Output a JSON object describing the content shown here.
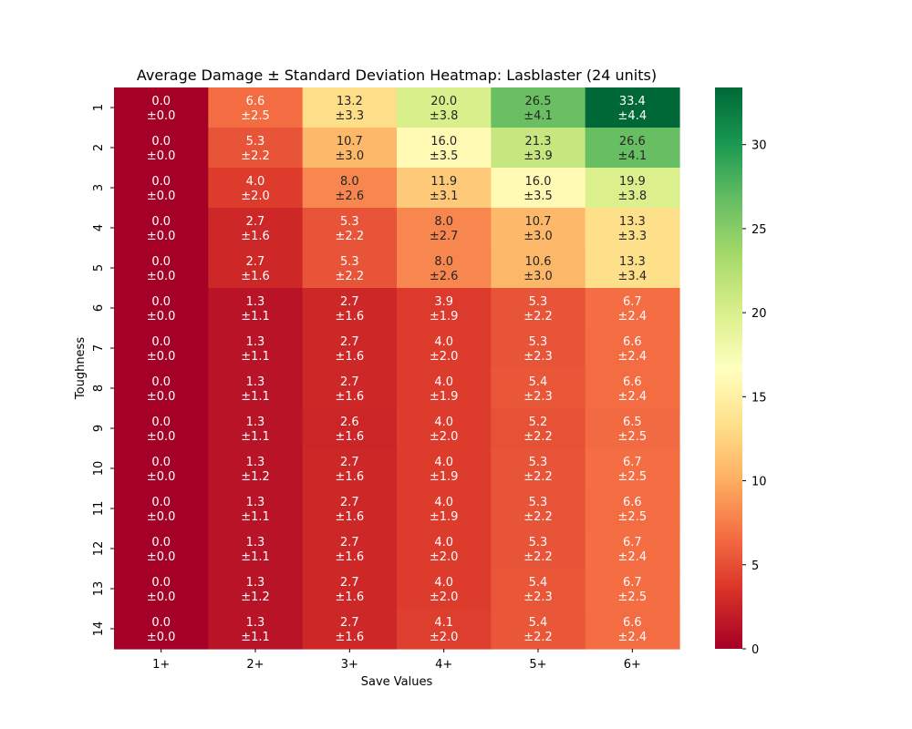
{
  "chart_data": {
    "type": "heatmap",
    "title": "Average Damage ± Standard Deviation Heatmap: Lasblaster (24 units)",
    "xlabel": "Save Values",
    "ylabel": "Toughness",
    "x_categories": [
      "1+",
      "2+",
      "3+",
      "4+",
      "5+",
      "6+"
    ],
    "y_categories": [
      "1",
      "2",
      "3",
      "4",
      "5",
      "6",
      "7",
      "8",
      "9",
      "10",
      "11",
      "12",
      "13",
      "14"
    ],
    "values": [
      [
        0.0,
        6.6,
        13.2,
        20.0,
        26.5,
        33.4
      ],
      [
        0.0,
        5.3,
        10.7,
        16.0,
        21.3,
        26.6
      ],
      [
        0.0,
        4.0,
        8.0,
        11.9,
        16.0,
        19.9
      ],
      [
        0.0,
        2.7,
        5.3,
        8.0,
        10.7,
        13.3
      ],
      [
        0.0,
        2.7,
        5.3,
        8.0,
        10.6,
        13.3
      ],
      [
        0.0,
        1.3,
        2.7,
        3.9,
        5.3,
        6.7
      ],
      [
        0.0,
        1.3,
        2.7,
        4.0,
        5.3,
        6.6
      ],
      [
        0.0,
        1.3,
        2.7,
        4.0,
        5.4,
        6.6
      ],
      [
        0.0,
        1.3,
        2.6,
        4.0,
        5.2,
        6.5
      ],
      [
        0.0,
        1.3,
        2.7,
        4.0,
        5.3,
        6.7
      ],
      [
        0.0,
        1.3,
        2.7,
        4.0,
        5.3,
        6.6
      ],
      [
        0.0,
        1.3,
        2.7,
        4.0,
        5.3,
        6.7
      ],
      [
        0.0,
        1.3,
        2.7,
        4.0,
        5.4,
        6.7
      ],
      [
        0.0,
        1.3,
        2.7,
        4.1,
        5.4,
        6.6
      ]
    ],
    "std": [
      [
        0.0,
        2.5,
        3.3,
        3.8,
        4.1,
        4.4
      ],
      [
        0.0,
        2.2,
        3.0,
        3.5,
        3.9,
        4.1
      ],
      [
        0.0,
        2.0,
        2.6,
        3.1,
        3.5,
        3.8
      ],
      [
        0.0,
        1.6,
        2.2,
        2.7,
        3.0,
        3.3
      ],
      [
        0.0,
        1.6,
        2.2,
        2.6,
        3.0,
        3.4
      ],
      [
        0.0,
        1.1,
        1.6,
        1.9,
        2.2,
        2.4
      ],
      [
        0.0,
        1.1,
        1.6,
        2.0,
        2.3,
        2.4
      ],
      [
        0.0,
        1.1,
        1.6,
        1.9,
        2.3,
        2.4
      ],
      [
        0.0,
        1.1,
        1.6,
        2.0,
        2.2,
        2.5
      ],
      [
        0.0,
        1.2,
        1.6,
        1.9,
        2.2,
        2.5
      ],
      [
        0.0,
        1.1,
        1.6,
        1.9,
        2.2,
        2.5
      ],
      [
        0.0,
        1.1,
        1.6,
        2.0,
        2.2,
        2.4
      ],
      [
        0.0,
        1.2,
        1.6,
        2.0,
        2.3,
        2.5
      ],
      [
        0.0,
        1.1,
        1.6,
        2.0,
        2.2,
        2.4
      ]
    ],
    "colormap": "RdYlGn",
    "color_range": [
      0,
      33.4
    ],
    "colorbar_ticks": [
      0,
      5,
      10,
      15,
      20,
      25,
      30
    ],
    "grid": false,
    "legend": "colorbar-right"
  }
}
